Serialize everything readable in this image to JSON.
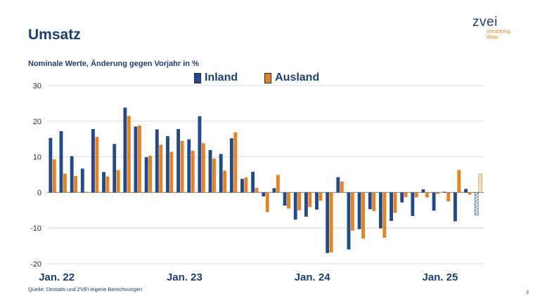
{
  "slide": {
    "title": "Umsatz",
    "subtitle": "Nominale Werte, Änderung gegen Vorjahr in %",
    "source": "Quelle: Destatis und ZVEI-eigene Berechnungen",
    "page_number": "3"
  },
  "logo": {
    "word": "zvei",
    "tagline_1": "electrifying",
    "tagline_2": "ideas"
  },
  "colors": {
    "inland": "#1f4b8e",
    "ausland": "#e8821e",
    "title": "#1b3f75",
    "grid": "#d9d9d9",
    "forecast": "hatched"
  },
  "chart_data": {
    "type": "bar",
    "title": "",
    "xlabel": "",
    "ylabel": "",
    "ylim": [
      -20,
      30
    ],
    "yticks": [
      "30",
      "20",
      "10",
      "0",
      "-10",
      "-20"
    ],
    "grid": true,
    "legend_position": "top-center",
    "x_labels": [
      "Jan. 22",
      "Jan. 23",
      "Jan. 24",
      "Jan. 25"
    ],
    "x_label_indices": [
      0,
      12,
      24,
      36
    ],
    "categories_count": 41,
    "series": [
      {
        "name": "Inland",
        "values": [
          15.3,
          17.2,
          10.2,
          6.7,
          17.8,
          5.7,
          13.6,
          23.8,
          18.5,
          9.9,
          17.7,
          15.8,
          17.8,
          14.9,
          21.4,
          11.9,
          10.8,
          15.2,
          3.8,
          5.8,
          -1.1,
          1.2,
          -3.7,
          -7.6,
          -6.8,
          -4.8,
          -17.0,
          4.3,
          -16.0,
          -10.3,
          -4.7,
          -10.1,
          -8.0,
          -2.8,
          -6.6,
          0.9,
          -5.1,
          0.2,
          -8.1,
          1.0,
          -6.3
        ]
      },
      {
        "name": "Ausland",
        "values": [
          9.3,
          5.3,
          4.6,
          0.2,
          15.6,
          4.5,
          6.3,
          21.5,
          18.8,
          10.3,
          13.4,
          11.4,
          14.5,
          11.7,
          13.8,
          9.5,
          6.1,
          16.9,
          4.2,
          1.3,
          -5.5,
          4.9,
          -4.5,
          -5.0,
          -4.1,
          -2.3,
          -16.8,
          3.1,
          -10.7,
          -13.0,
          -5.2,
          -12.7,
          -5.7,
          -1.3,
          -1.4,
          -1.4,
          -0.4,
          -2.5,
          6.3,
          -0.6,
          5.2
        ]
      }
    ],
    "forecast_index": 40
  }
}
